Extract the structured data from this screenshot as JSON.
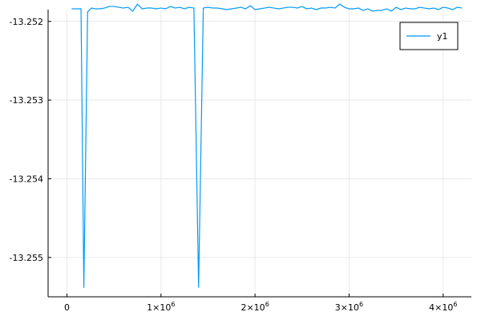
{
  "chart_data": {
    "type": "line",
    "title": "",
    "xlabel": "",
    "ylabel": "",
    "grid": true,
    "legend": {
      "position": "top-right"
    },
    "xlim": [
      -200000,
      4300000
    ],
    "ylim": [
      -13.2555,
      -13.25185
    ],
    "x_ticks": [
      {
        "value": 0,
        "base": "0",
        "exp": ""
      },
      {
        "value": 1000000,
        "base": "1×10",
        "exp": "6"
      },
      {
        "value": 2000000,
        "base": "2×10",
        "exp": "6"
      },
      {
        "value": 3000000,
        "base": "3×10",
        "exp": "6"
      },
      {
        "value": 4000000,
        "base": "4×10",
        "exp": "6"
      }
    ],
    "y_ticks": [
      {
        "value": -13.252,
        "label": "-13.252"
      },
      {
        "value": -13.253,
        "label": "-13.253"
      },
      {
        "value": -13.254,
        "label": "-13.254"
      },
      {
        "value": -13.255,
        "label": "-13.255"
      }
    ],
    "series": [
      {
        "name": "y1",
        "color": "#009af9",
        "x": [
          50000,
          100000,
          150000,
          180000,
          220000,
          260000,
          300000,
          350000,
          400000,
          450000,
          500000,
          550000,
          600000,
          650000,
          700000,
          750000,
          800000,
          850000,
          900000,
          950000,
          1000000,
          1050000,
          1100000,
          1150000,
          1200000,
          1250000,
          1300000,
          1350000,
          1400000,
          1450000,
          1500000,
          1550000,
          1600000,
          1650000,
          1700000,
          1750000,
          1800000,
          1850000,
          1900000,
          1950000,
          2000000,
          2050000,
          2100000,
          2150000,
          2200000,
          2250000,
          2300000,
          2350000,
          2400000,
          2450000,
          2500000,
          2550000,
          2600000,
          2650000,
          2700000,
          2750000,
          2800000,
          2850000,
          2900000,
          2950000,
          3000000,
          3050000,
          3100000,
          3150000,
          3200000,
          3250000,
          3300000,
          3350000,
          3400000,
          3450000,
          3500000,
          3550000,
          3600000,
          3650000,
          3700000,
          3750000,
          3800000,
          3850000,
          3900000,
          3950000,
          4000000,
          4050000,
          4100000,
          4150000,
          4200000
        ],
        "y": [
          -13.25184,
          -13.25184,
          -13.25184,
          -13.25538,
          -13.25188,
          -13.25183,
          -13.25184,
          -13.25184,
          -13.25183,
          -13.25181,
          -13.25181,
          -13.25182,
          -13.25183,
          -13.25182,
          -13.25187,
          -13.25178,
          -13.25184,
          -13.25183,
          -13.25183,
          -13.25184,
          -13.25183,
          -13.25184,
          -13.25181,
          -13.25183,
          -13.25182,
          -13.25184,
          -13.25182,
          -13.25183,
          -13.25538,
          -13.25183,
          -13.25182,
          -13.25183,
          -13.25183,
          -13.25184,
          -13.25185,
          -13.25184,
          -13.25183,
          -13.25182,
          -13.25184,
          -13.2518,
          -13.25185,
          -13.25184,
          -13.25183,
          -13.25182,
          -13.25183,
          -13.25184,
          -13.25183,
          -13.25182,
          -13.25182,
          -13.25183,
          -13.25181,
          -13.25184,
          -13.25183,
          -13.25185,
          -13.25183,
          -13.25183,
          -13.25182,
          -13.25183,
          -13.25178,
          -13.25182,
          -13.25184,
          -13.25184,
          -13.25183,
          -13.25186,
          -13.25184,
          -13.25187,
          -13.25186,
          -13.25186,
          -13.25184,
          -13.25187,
          -13.25182,
          -13.25185,
          -13.25183,
          -13.25184,
          -13.25184,
          -13.25182,
          -13.25183,
          -13.25184,
          -13.25183,
          -13.25185,
          -13.25182,
          -13.25183,
          -13.25185,
          -13.25182,
          -13.25183
        ]
      }
    ]
  }
}
